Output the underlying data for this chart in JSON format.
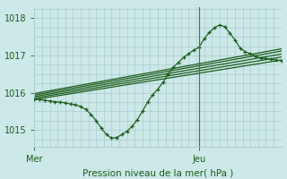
{
  "xlabel": "Pression niveau de la mer( hPa )",
  "bg_color": "#cce8e8",
  "grid_color": "#aacccc",
  "line_color": "#1a5c1a",
  "vline_color": "#556655",
  "text_color": "#1a5c1a",
  "ylim": [
    1014.55,
    1018.3
  ],
  "xlim": [
    0,
    48
  ],
  "yticks": [
    1015,
    1016,
    1017,
    1018
  ],
  "xtick_positions": [
    0,
    32
  ],
  "xtick_labels": [
    "Mer",
    "Jeu"
  ],
  "vline_x": 32,
  "smooth_lines": [
    {
      "x0": 0,
      "y0": 1015.82,
      "x1": 48,
      "y1": 1016.88
    },
    {
      "x0": 0,
      "y0": 1015.86,
      "x1": 48,
      "y1": 1016.96
    },
    {
      "x0": 0,
      "y0": 1015.9,
      "x1": 48,
      "y1": 1017.04
    },
    {
      "x0": 0,
      "y0": 1015.94,
      "x1": 48,
      "y1": 1017.12
    },
    {
      "x0": 0,
      "y0": 1015.98,
      "x1": 48,
      "y1": 1017.18
    }
  ],
  "volatile_x": [
    0,
    1,
    2,
    3,
    4,
    5,
    6,
    7,
    8,
    9,
    10,
    11,
    12,
    13,
    14,
    15,
    16,
    17,
    18,
    19,
    20,
    21,
    22,
    23,
    24,
    25,
    26,
    27,
    28,
    29,
    30,
    31,
    32,
    33,
    34,
    35,
    36,
    37,
    38,
    39,
    40,
    41,
    42,
    43,
    44,
    45,
    46,
    47,
    48
  ],
  "volatile_y": [
    1015.82,
    1015.82,
    1015.8,
    1015.78,
    1015.76,
    1015.75,
    1015.73,
    1015.7,
    1015.68,
    1015.63,
    1015.55,
    1015.42,
    1015.25,
    1015.05,
    1014.88,
    1014.78,
    1014.8,
    1014.88,
    1014.97,
    1015.1,
    1015.28,
    1015.5,
    1015.75,
    1015.95,
    1016.1,
    1016.28,
    1016.5,
    1016.68,
    1016.82,
    1016.95,
    1017.05,
    1017.15,
    1017.22,
    1017.45,
    1017.62,
    1017.75,
    1017.82,
    1017.78,
    1017.6,
    1017.42,
    1017.2,
    1017.1,
    1017.05,
    1016.98,
    1016.94,
    1016.92,
    1016.9,
    1016.88,
    1016.86
  ]
}
